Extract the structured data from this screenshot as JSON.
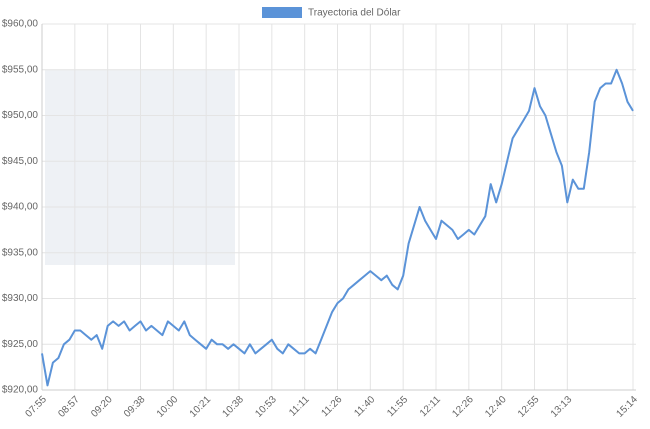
{
  "chart_data": {
    "type": "line",
    "legend": "top",
    "grid": true,
    "categories": [
      "07:55",
      null,
      null,
      null,
      null,
      null,
      "08:57",
      null,
      null,
      null,
      null,
      null,
      "09:20",
      null,
      null,
      null,
      null,
      null,
      "09:38",
      null,
      null,
      null,
      null,
      null,
      "10:00",
      null,
      null,
      null,
      null,
      null,
      "10:21",
      null,
      null,
      null,
      null,
      null,
      "10:38",
      null,
      null,
      null,
      null,
      null,
      "10:53",
      null,
      null,
      null,
      null,
      null,
      "11:11",
      null,
      null,
      null,
      null,
      null,
      "11:26",
      null,
      null,
      null,
      null,
      null,
      "11:40",
      null,
      null,
      null,
      null,
      null,
      "11:55",
      null,
      null,
      null,
      null,
      null,
      "12:11",
      null,
      null,
      null,
      null,
      null,
      "12:26",
      null,
      null,
      null,
      null,
      null,
      "12:40",
      null,
      null,
      null,
      null,
      null,
      "12:55",
      null,
      null,
      null,
      null,
      null,
      "13:13",
      null,
      null,
      null,
      null,
      null,
      null,
      null,
      null,
      null,
      null,
      null,
      "15:14"
    ],
    "series": [
      {
        "name": "Trayectoria del Dólar",
        "color": "#5b93d8",
        "values": [
          924,
          920.5,
          923,
          923.5,
          925,
          925.5,
          926.5,
          926.5,
          926,
          925.5,
          926,
          924.5,
          927,
          927.5,
          927,
          927.5,
          926.5,
          927,
          927.5,
          926.5,
          927,
          926.5,
          926,
          927.5,
          927,
          926.5,
          927.5,
          926,
          925.5,
          925,
          924.5,
          925.5,
          925,
          925,
          924.5,
          925,
          924.5,
          924,
          925,
          924,
          924.5,
          925,
          925.5,
          924.5,
          924,
          925,
          924.5,
          924,
          924,
          924.5,
          924,
          925.5,
          927,
          928.5,
          929.5,
          930,
          931,
          931.5,
          932,
          932.5,
          933,
          932.5,
          932,
          932.5,
          931.5,
          931,
          932.5,
          936,
          938,
          940,
          938.5,
          937.5,
          936.5,
          938.5,
          938,
          937.5,
          936.5,
          937,
          937.5,
          937,
          938,
          939,
          942.5,
          940.5,
          942.5,
          945,
          947.5,
          948.5,
          949.5,
          950.5,
          953,
          951,
          950,
          948,
          946,
          944.5,
          940.5,
          943,
          942,
          942,
          946,
          951.5,
          953,
          953.5,
          953.5,
          955,
          953.5,
          951.5,
          950.5
        ]
      }
    ],
    "ylim": [
      920,
      960
    ],
    "yticks": [
      {
        "value": 920,
        "label": "$920,00"
      },
      {
        "value": 925,
        "label": "$925,00"
      },
      {
        "value": 930,
        "label": "$930,00"
      },
      {
        "value": 935,
        "label": "$935,00"
      },
      {
        "value": 940,
        "label": "$940,00"
      },
      {
        "value": 945,
        "label": "$945,00"
      },
      {
        "value": 950,
        "label": "$950,00"
      },
      {
        "value": 955,
        "label": "$955,00"
      },
      {
        "value": 960,
        "label": "$960,00"
      }
    ]
  }
}
